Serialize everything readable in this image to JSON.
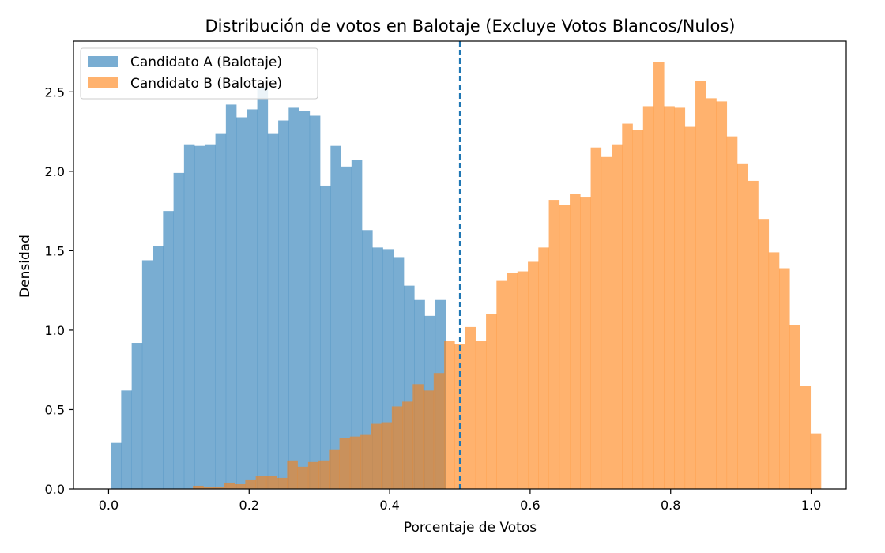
{
  "chart_data": {
    "type": "bar",
    "title": "Distribución de votos en Balotaje (Excluye Votos Blancos/Nulos)",
    "xlabel": "Porcentaje de Votos",
    "ylabel": "Densidad",
    "xlim": [
      -0.05,
      1.05
    ],
    "ylim": [
      0,
      2.82
    ],
    "xticks": [
      0.0,
      0.2,
      0.4,
      0.6,
      0.8,
      1.0
    ],
    "xtick_labels": [
      "0.0",
      "0.2",
      "0.4",
      "0.6",
      "0.8",
      "1.0"
    ],
    "yticks": [
      0.0,
      0.5,
      1.0,
      1.5,
      2.0,
      2.5
    ],
    "ytick_labels": [
      "0.0",
      "0.5",
      "1.0",
      "1.5",
      "2.0",
      "2.5"
    ],
    "grid": false,
    "legend_position": "top-left",
    "threshold_line": {
      "x": 0.5,
      "style": "dashed",
      "color": "#1f77b4"
    },
    "series": [
      {
        "name": "Candidato A (Balotaje)",
        "color": "#1f77b4",
        "opacity": 0.6,
        "bin_start": 0.003,
        "bin_width": 0.0149,
        "values": [
          0.29,
          0.62,
          0.92,
          1.44,
          1.53,
          1.75,
          1.99,
          2.17,
          2.16,
          2.17,
          2.24,
          2.42,
          2.34,
          2.39,
          2.53,
          2.24,
          2.32,
          2.4,
          2.38,
          2.35,
          1.91,
          2.16,
          2.03,
          2.07,
          1.63,
          1.52,
          1.51,
          1.46,
          1.28,
          1.19,
          1.09,
          1.19
        ]
      },
      {
        "name": "Candidato B (Balotaje)",
        "color": "#ff7f0e",
        "opacity": 0.6,
        "bin_start": 0.12,
        "bin_width": 0.0149,
        "values": [
          0.02,
          0.01,
          0.01,
          0.04,
          0.03,
          0.06,
          0.08,
          0.08,
          0.07,
          0.18,
          0.14,
          0.17,
          0.18,
          0.25,
          0.32,
          0.33,
          0.34,
          0.41,
          0.42,
          0.52,
          0.55,
          0.66,
          0.62,
          0.73,
          0.93,
          0.91,
          1.02,
          0.93,
          1.1,
          1.31,
          1.36,
          1.37,
          1.43,
          1.52,
          1.82,
          1.79,
          1.86,
          1.84,
          2.15,
          2.09,
          2.17,
          2.3,
          2.26,
          2.41,
          2.69,
          2.41,
          2.4,
          2.28,
          2.57,
          2.46,
          2.44,
          2.22,
          2.05,
          1.94,
          1.7,
          1.49,
          1.39,
          1.03,
          0.65,
          0.35
        ]
      }
    ]
  }
}
